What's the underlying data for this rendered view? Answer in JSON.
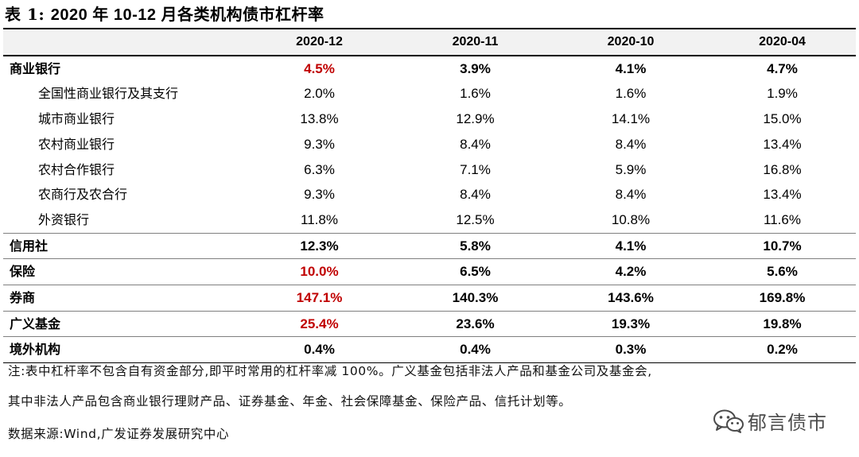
{
  "title": {
    "label": "表 1:",
    "text": "2020 年 10-12 月各类机构债市杠杆率"
  },
  "table": {
    "headers": [
      "",
      "2020-12",
      "2020-11",
      "2020-10",
      "2020-04"
    ],
    "rows": [
      {
        "name": "商业银行",
        "values": [
          "4.5%",
          "3.9%",
          "4.1%",
          "4.7%"
        ],
        "level": "major",
        "highlight_first": true
      },
      {
        "name": "全国性商业银行及其支行",
        "values": [
          "2.0%",
          "1.6%",
          "1.6%",
          "1.9%"
        ],
        "level": "sub",
        "highlight_first": false
      },
      {
        "name": "城市商业银行",
        "values": [
          "13.8%",
          "12.9%",
          "14.1%",
          "15.0%"
        ],
        "level": "sub",
        "highlight_first": false
      },
      {
        "name": "农村商业银行",
        "values": [
          "9.3%",
          "8.4%",
          "8.4%",
          "13.4%"
        ],
        "level": "sub",
        "highlight_first": false
      },
      {
        "name": "农村合作银行",
        "values": [
          "6.3%",
          "7.1%",
          "5.9%",
          "16.8%"
        ],
        "level": "sub",
        "highlight_first": false
      },
      {
        "name": "农商行及农合行",
        "values": [
          "9.3%",
          "8.4%",
          "8.4%",
          "13.4%"
        ],
        "level": "sub",
        "highlight_first": false
      },
      {
        "name": "外资银行",
        "values": [
          "11.8%",
          "12.5%",
          "10.8%",
          "11.6%"
        ],
        "level": "sub",
        "highlight_first": false
      },
      {
        "name": "信用社",
        "values": [
          "12.3%",
          "5.8%",
          "4.1%",
          "10.7%"
        ],
        "level": "major",
        "highlight_first": false
      },
      {
        "name": "保险",
        "values": [
          "10.0%",
          "6.5%",
          "4.2%",
          "5.6%"
        ],
        "level": "major",
        "highlight_first": true
      },
      {
        "name": "券商",
        "values": [
          "147.1%",
          "140.3%",
          "143.6%",
          "169.8%"
        ],
        "level": "major",
        "highlight_first": true
      },
      {
        "name": "广义基金",
        "values": [
          "25.4%",
          "23.6%",
          "19.3%",
          "19.8%"
        ],
        "level": "major",
        "highlight_first": true
      },
      {
        "name": "境外机构",
        "values": [
          "0.4%",
          "0.4%",
          "0.3%",
          "0.2%"
        ],
        "level": "major",
        "highlight_first": false
      }
    ]
  },
  "notes": {
    "line1": "注:表中杠杆率不包含自有资金部分,即平时常用的杠杆率减 100%。广义基金包括非法人产品和基金公司及基金会,",
    "line2": "其中非法人产品包含商业银行理财产品、证券基金、年金、社会保障基金、保险产品、信托计划等。",
    "source": "数据来源:Wind,广发证券发展研究中心"
  },
  "watermark": {
    "text": "郁言债市",
    "icon": "wechat-icon"
  },
  "colors": {
    "highlight": "#c00000",
    "header_bg": "#f2f2f2"
  }
}
